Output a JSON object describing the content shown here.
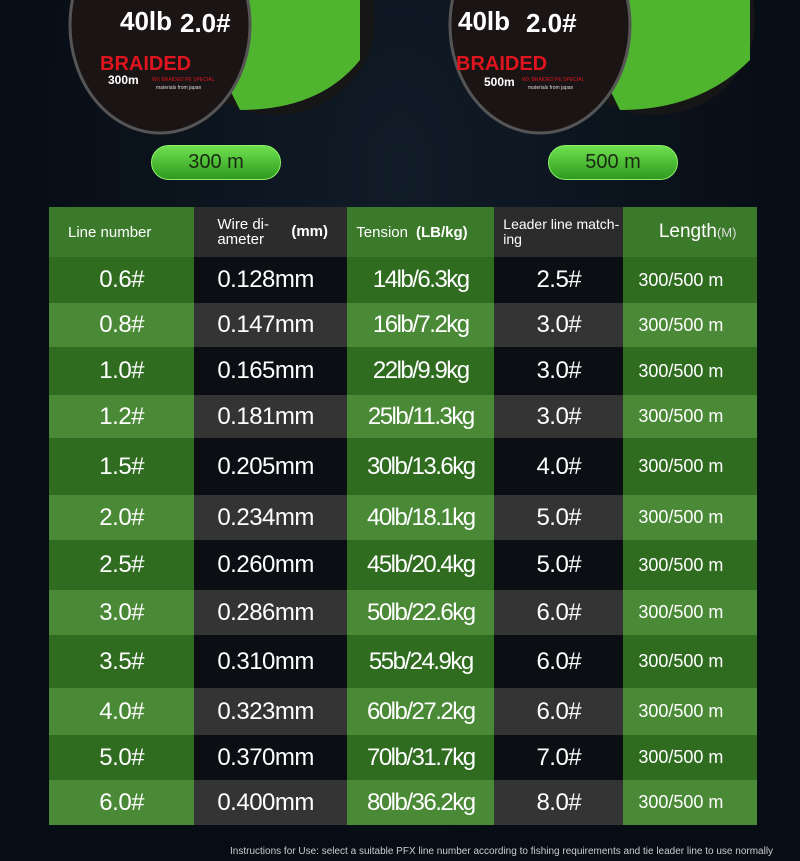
{
  "spools": [
    {
      "weight": "40lb",
      "number": "2.0#",
      "brand": "BRAIDED",
      "length": "300m",
      "sub": "WX BRAIDED PE SPECIAL",
      "origin": "materials from japan",
      "pill": "300 m"
    },
    {
      "weight": "40lb",
      "number": "2.0#",
      "brand": "BRAIDED",
      "length": "500m",
      "sub": "WX BRAIDED PE SPECIAL",
      "origin": "materials from japan",
      "pill": "500 m"
    }
  ],
  "table": {
    "headers": {
      "line_number": "Line number",
      "wire_diameter": "Wire di-ameter",
      "wire_unit": "(mm)",
      "tension": "Tension",
      "tension_unit": "(LB/kg)",
      "leader": "Leader line match-ing",
      "length": "Length",
      "length_unit": "(M)"
    },
    "rows": [
      [
        "0.6#",
        "0.128mm",
        "14lb/6.3kg",
        "2.5#",
        "300/500 m"
      ],
      [
        "0.8#",
        "0.147mm",
        "16lb/7.2kg",
        "3.0#",
        "300/500 m"
      ],
      [
        "1.0#",
        "0.165mm",
        "22lb/9.9kg",
        "3.0#",
        "300/500 m"
      ],
      [
        "1.2#",
        "0.181mm",
        "25lb/11.3kg",
        "3.0#",
        "300/500 m"
      ],
      [
        "1.5#",
        "0.205mm",
        "30lb/13.6kg",
        "4.0#",
        "300/500 m"
      ],
      [
        "2.0#",
        "0.234mm",
        "40lb/18.1kg",
        "5.0#",
        "300/500 m"
      ],
      [
        "2.5#",
        "0.260mm",
        "45lb/20.4kg",
        "5.0#",
        "300/500 m"
      ],
      [
        "3.0#",
        "0.286mm",
        "50lb/22.6kg",
        "6.0#",
        "300/500 m"
      ],
      [
        "3.5#",
        "0.310mm",
        "55b/24.9kg",
        "6.0#",
        "300/500 m"
      ],
      [
        "4.0#",
        "0.323mm",
        "60lb/27.2kg",
        "6.0#",
        "300/500 m"
      ],
      [
        "5.0#",
        "0.370mm",
        "70lb/31.7kg",
        "7.0#",
        "300/500 m"
      ],
      [
        "6.0#",
        "0.400mm",
        "80lb/36.2kg",
        "8.0#",
        "300/500 m"
      ]
    ]
  },
  "note": "Instructions for Use: select a suitable PFX line number according to fishing requirements and tie leader line to use normally",
  "colors": {
    "green": "#3b7a2b",
    "dark": "#2c2c2c",
    "pill": "#4cc032",
    "brand_red": "#e0141e"
  }
}
